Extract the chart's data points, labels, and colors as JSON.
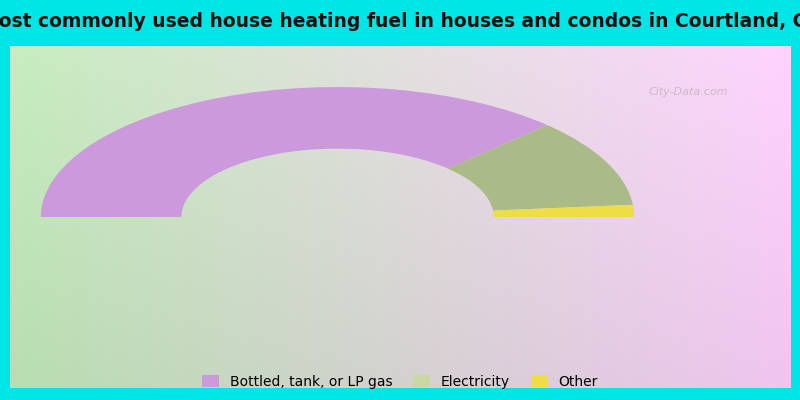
{
  "title": "Most commonly used house heating fuel in houses and condos in Courtland, CA",
  "title_fontsize": 13.5,
  "segments": [
    {
      "label": "Bottled, tank, or LP gas",
      "value": 75,
      "color": "#cc99dd"
    },
    {
      "label": "Electricity",
      "value": 22,
      "color": "#aabb88"
    },
    {
      "label": "Other",
      "value": 3,
      "color": "#eedd44"
    }
  ],
  "bg_colors": [
    "#b8ddb0",
    "#c8e8c0",
    "#d8ecd8",
    "#e8f4e0",
    "#f0f0e8",
    "#ece8f0",
    "#e4e0f0"
  ],
  "border_color": "#00e5e5",
  "legend_colors": [
    "#cc99dd",
    "#c8d8a0",
    "#eedd44"
  ],
  "legend_labels": [
    "Bottled, tank, or LP gas",
    "Electricity",
    "Other"
  ],
  "watermark": "City-Data.com"
}
